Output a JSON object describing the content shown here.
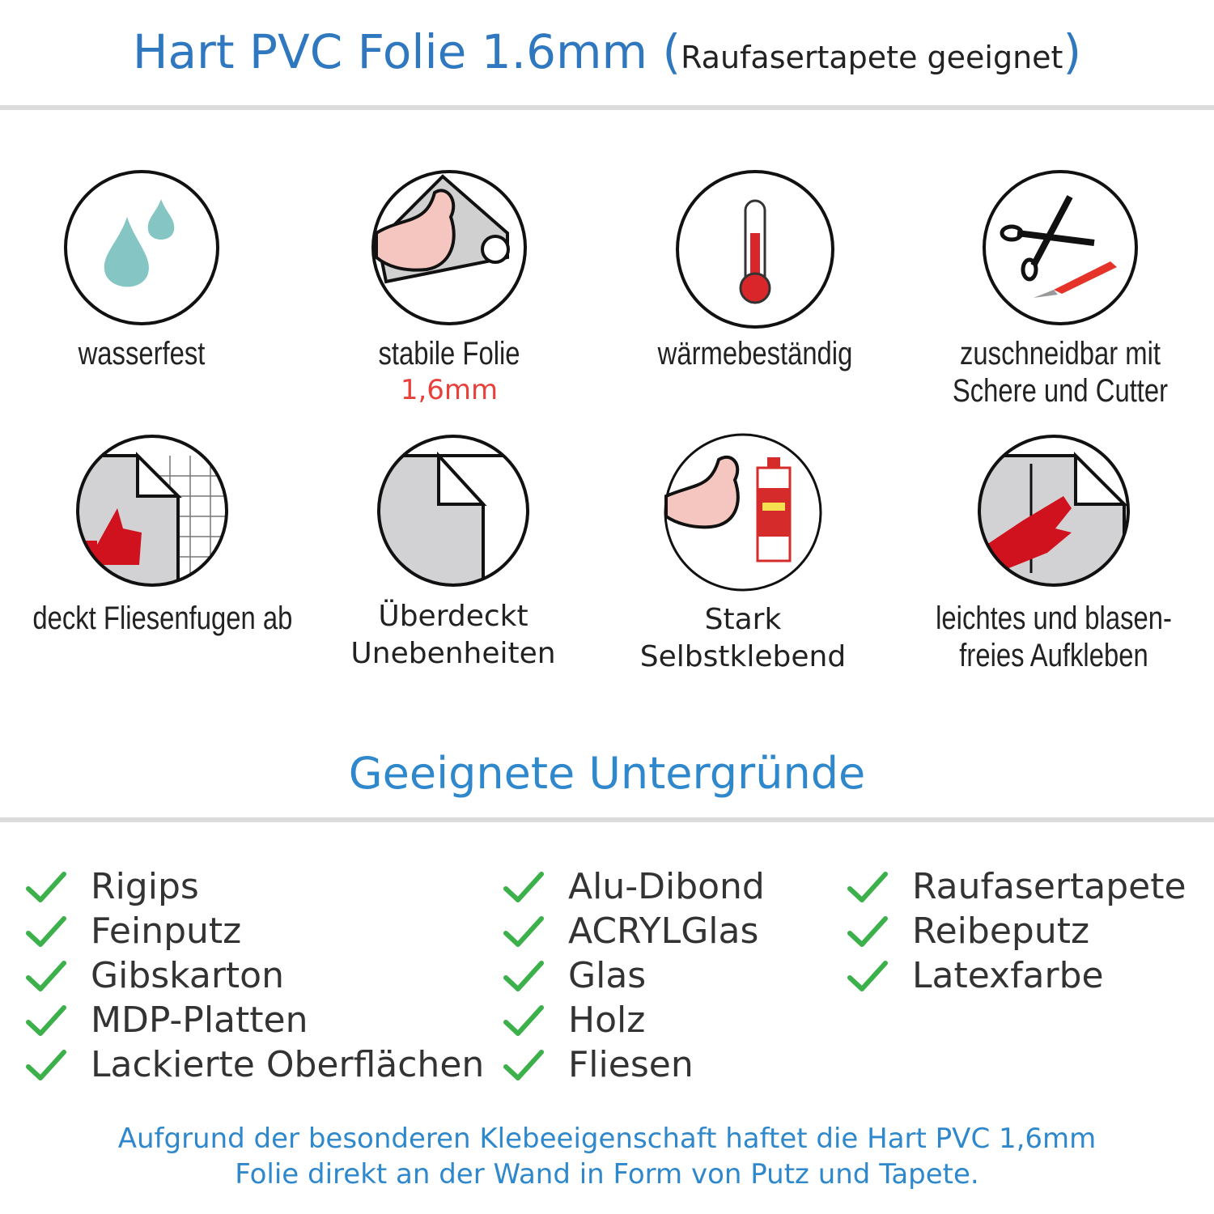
{
  "header": {
    "title": "Hart PVC Folie 1.6mm",
    "subtitle_open": "(",
    "subtitle": "Raufasertapete geeignet",
    "subtitle_close": ")"
  },
  "features": [
    {
      "icon": "water-drops-icon",
      "label": "wasserfest"
    },
    {
      "icon": "muscle-foil-roll-icon",
      "label": "stabile Folie",
      "sublabel": "1,6mm"
    },
    {
      "icon": "thermometer-icon",
      "label": "wärmebeständig"
    },
    {
      "icon": "scissors-cutter-icon",
      "label": "zuschneidbar mit",
      "label2": "Schere und Cutter"
    },
    {
      "icon": "thumbs-up-tiles-icon",
      "label": "deckt Fliesenfugen ab"
    },
    {
      "icon": "foil-corner-icon",
      "label": "Überdeckt",
      "label2": "Unebenheiten"
    },
    {
      "icon": "muscle-glue-icon",
      "label": "Stark",
      "label2": "Selbstklebend"
    },
    {
      "icon": "hand-smoothing-icon",
      "label": "leichtes und blasen-",
      "label2": "freies Aufkleben"
    }
  ],
  "surfaces": {
    "title": "Geeignete Untergründe",
    "columns": [
      [
        "Rigips",
        "Feinputz",
        "Gibskarton",
        "MDP-Platten",
        "Lackierte Oberflächen"
      ],
      [
        "Alu-Dibond",
        "ACRYLGlas",
        "Glas",
        "Holz",
        "Fliesen"
      ],
      [
        "Raufasertapete",
        "Reibeputz",
        "Latexfarbe"
      ]
    ]
  },
  "footer": {
    "line1": "Aufgrund der besonderen Klebeeigenschaft haftet die Hart PVC 1,6mm",
    "line2": "Folie direkt an der Wand in Form von Putz und Tapete."
  },
  "colors": {
    "title_blue": "#2f78bf",
    "accent_red": "#e8413c",
    "check_green": "#3cb04a"
  }
}
